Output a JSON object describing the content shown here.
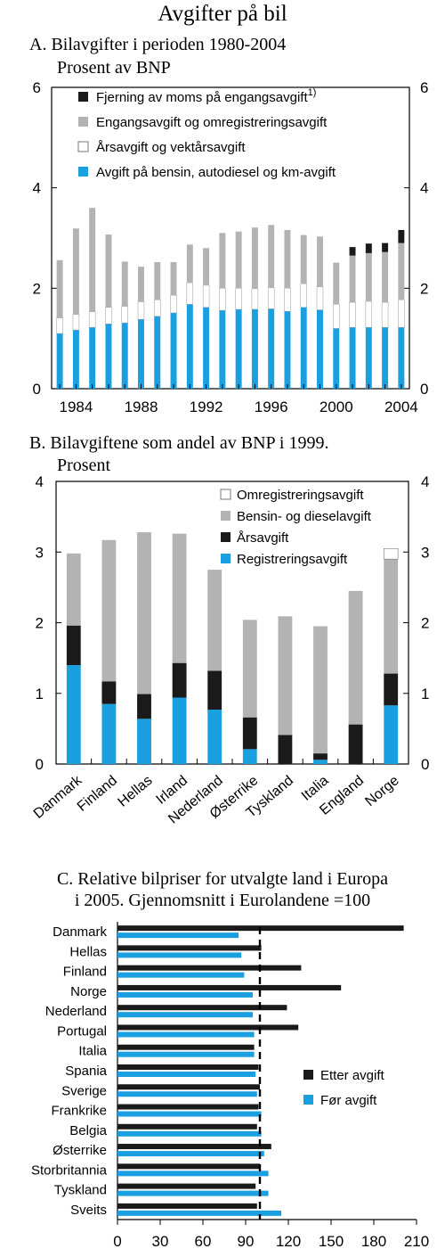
{
  "page": {
    "title": "Avgifter på bil"
  },
  "colors": {
    "blue": "#1a9fe0",
    "white": "#ffffff",
    "gray": "#b3b3b3",
    "black": "#1a1a1a",
    "dashed": "#000000"
  },
  "chart_data": [
    {
      "id": "A",
      "type": "bar",
      "stacked": true,
      "title": "A. Bilavgifter i perioden 1980-2004",
      "subtitle": "Prosent av BNP",
      "ylim": [
        0,
        6
      ],
      "yticks": [
        0,
        2,
        4,
        6
      ],
      "xticks": [
        "1984",
        "1988",
        "1992",
        "1996",
        "2000",
        "2004"
      ],
      "legend_position": "top",
      "categories": [
        "1983",
        "1984",
        "1985",
        "1986",
        "1987",
        "1988",
        "1989",
        "1990",
        "1991",
        "1992",
        "1993",
        "1994",
        "1995",
        "1996",
        "1997",
        "1998",
        "1999",
        "2000",
        "2001",
        "2002",
        "2003",
        "2004"
      ],
      "series": [
        {
          "name": "Avgift på bensin, autodiesel og km-avgift",
          "color": "#1a9fe0",
          "values": [
            1.1,
            1.17,
            1.22,
            1.29,
            1.31,
            1.38,
            1.44,
            1.51,
            1.68,
            1.62,
            1.56,
            1.58,
            1.58,
            1.59,
            1.54,
            1.62,
            1.57,
            1.2,
            1.22,
            1.22,
            1.22,
            1.22
          ]
        },
        {
          "name": "Årsavgift og vektårsavgift",
          "color": "#ffffff",
          "values": [
            0.31,
            0.31,
            0.31,
            0.33,
            0.33,
            0.35,
            0.33,
            0.35,
            0.43,
            0.44,
            0.44,
            0.42,
            0.41,
            0.42,
            0.46,
            0.47,
            0.46,
            0.48,
            0.5,
            0.52,
            0.5,
            0.55
          ]
        },
        {
          "name": "Engangsavgift og omregistreringsavgift",
          "color": "#b3b3b3",
          "values": [
            1.15,
            1.71,
            2.07,
            1.45,
            0.89,
            0.7,
            0.75,
            0.66,
            0.76,
            0.74,
            1.1,
            1.13,
            1.22,
            1.25,
            1.16,
            0.97,
            1.0,
            0.83,
            0.93,
            0.96,
            1.0,
            1.13
          ]
        },
        {
          "name": "Fjerning av moms på engangsavgift",
          "sup": "1)",
          "color": "#1a1a1a",
          "values": [
            0,
            0,
            0,
            0,
            0,
            0,
            0,
            0,
            0,
            0,
            0,
            0,
            0,
            0,
            0,
            0,
            0,
            0,
            0.17,
            0.19,
            0.18,
            0.26
          ]
        }
      ]
    },
    {
      "id": "B",
      "type": "bar",
      "stacked": true,
      "title": "B.  Bilavgiftene som andel av BNP i 1999.",
      "subtitle": "Prosent",
      "ylim": [
        0,
        4
      ],
      "yticks": [
        0,
        1,
        2,
        3,
        4
      ],
      "legend_position": "top-right",
      "categories": [
        "Danmark",
        "Finland",
        "Hellas",
        "Irland",
        "Nederland",
        "Østerrike",
        "Tyskland",
        "Italia",
        "England",
        "Norge"
      ],
      "series": [
        {
          "name": "Registreringsavgift",
          "color": "#1a9fe0",
          "values": [
            1.4,
            0.85,
            0.64,
            0.94,
            0.77,
            0.21,
            0,
            0.06,
            0,
            0.83
          ]
        },
        {
          "name": "Årsavgift",
          "color": "#1a1a1a",
          "values": [
            0.56,
            0.32,
            0.35,
            0.49,
            0.55,
            0.45,
            0.41,
            0.09,
            0.56,
            0.45
          ]
        },
        {
          "name": "Bensin- og dieselavgift",
          "color": "#b3b3b3",
          "values": [
            1.02,
            2.0,
            2.29,
            1.83,
            1.43,
            1.38,
            1.68,
            1.8,
            1.89,
            1.62
          ]
        },
        {
          "name": "Omregistreringsavgift",
          "color": "#ffffff",
          "values": [
            0,
            0,
            0,
            0,
            0,
            0,
            0,
            0,
            0,
            0.15
          ]
        }
      ]
    },
    {
      "id": "C",
      "type": "bar",
      "orientation": "horizontal",
      "title": "C. Relative bilpriser for utvalgte land i Europa",
      "subtitle": "i 2005. Gjennomsnitt i Eurolandene =100",
      "xlim": [
        0,
        210
      ],
      "xticks": [
        0,
        30,
        60,
        90,
        120,
        150,
        180,
        210
      ],
      "reference_line": 100,
      "legend_position": "right",
      "categories": [
        "Danmark",
        "Hellas",
        "Finland",
        "Norge",
        "Nederland",
        "Portugal",
        "Italia",
        "Spania",
        "Sverige",
        "Frankrike",
        "Belgia",
        "Østerrike",
        "Storbritannia",
        "Tyskland",
        "Sveits"
      ],
      "series": [
        {
          "name": "Etter avgift",
          "color": "#1a1a1a",
          "values": [
            201,
            101,
            129,
            157,
            119,
            127,
            96,
            99,
            100,
            99,
            98,
            108,
            100,
            97,
            98
          ]
        },
        {
          "name": "Før avgift",
          "color": "#1a9fe0",
          "values": [
            85,
            87,
            89,
            95,
            95,
            96,
            96,
            97,
            98,
            101,
            101,
            103,
            106,
            106,
            115
          ]
        }
      ]
    }
  ]
}
